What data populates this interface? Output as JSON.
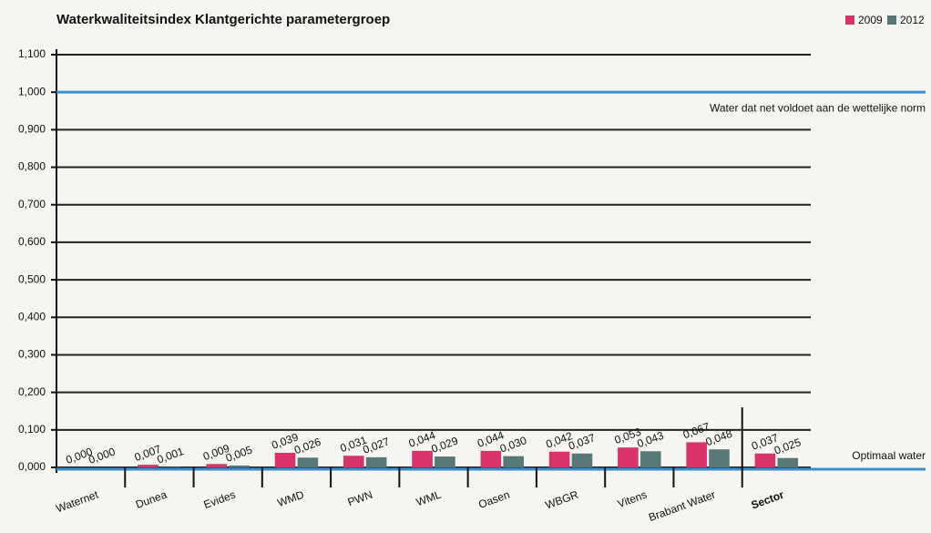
{
  "chart_data": {
    "type": "bar",
    "title": "Waterkwaliteitsindex Klantgerichte parametergroep",
    "categories": [
      "Waternet",
      "Dunea",
      "Evides",
      "WMD",
      "PWN",
      "WML",
      "Oasen",
      "WBGR",
      "Vitens",
      "Brabant Water",
      "Sector"
    ],
    "series": [
      {
        "name": "2009",
        "color": "#d8336b",
        "values": [
          0.0,
          0.007,
          0.009,
          0.039,
          0.031,
          0.044,
          0.044,
          0.042,
          0.053,
          0.067,
          0.037
        ],
        "value_labels": [
          "0,000",
          "0,007",
          "0,009",
          "0,039",
          "0,031",
          "0,044",
          "0,044",
          "0,042",
          "0,053",
          "0,067",
          "0,037"
        ]
      },
      {
        "name": "2012",
        "color": "#587878",
        "values": [
          0.0,
          0.001,
          0.005,
          0.026,
          0.027,
          0.029,
          0.03,
          0.037,
          0.043,
          0.048,
          0.025
        ],
        "value_labels": [
          "0,000",
          "0,001",
          "0,005",
          "0,026",
          "0,027",
          "0,029",
          "0,030",
          "0,037",
          "0,043",
          "0,048",
          "0,025"
        ]
      }
    ],
    "ylim": [
      0,
      1.1
    ],
    "yticks": [
      {
        "value": 0,
        "label": "0,000"
      },
      {
        "value": 0.1,
        "label": "0,100"
      },
      {
        "value": 0.2,
        "label": "0,200"
      },
      {
        "value": 0.3,
        "label": "0,300"
      },
      {
        "value": 0.4,
        "label": "0,400"
      },
      {
        "value": 0.5,
        "label": "0,500"
      },
      {
        "value": 0.6,
        "label": "0,600"
      },
      {
        "value": 0.7,
        "label": "0,700"
      },
      {
        "value": 0.8,
        "label": "0,800"
      },
      {
        "value": 0.9,
        "label": "0,900"
      },
      {
        "value": 1.0,
        "label": "1,000"
      },
      {
        "value": 1.1,
        "label": "1,100"
      }
    ],
    "grid": true,
    "annotations": [
      {
        "text": "Water dat net voldoet aan de wettelijke norm",
        "value": 1.0
      },
      {
        "text": "Optimaal water",
        "value": 0
      }
    ]
  }
}
